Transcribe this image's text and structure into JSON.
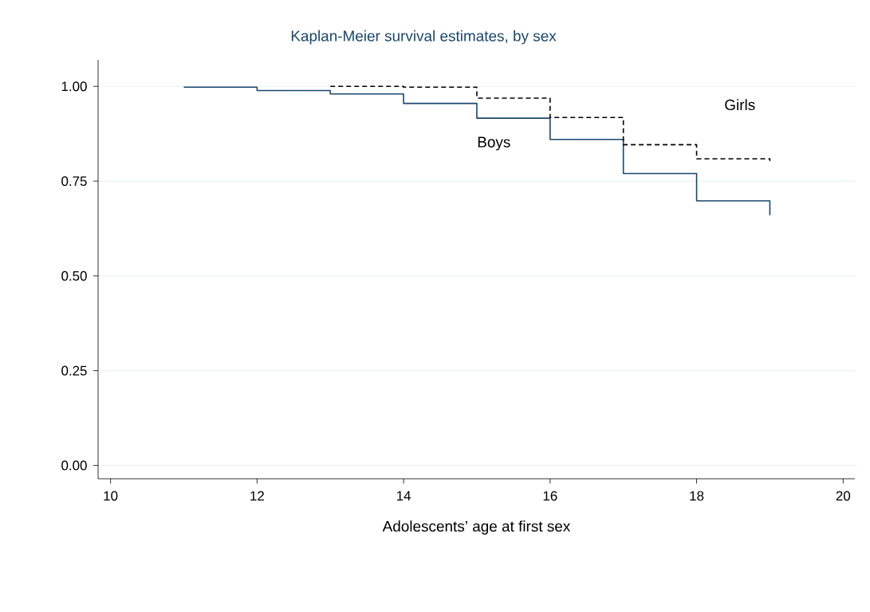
{
  "chart_data": {
    "type": "step",
    "title": "Kaplan-Meier survival estimates, by sex",
    "xlabel": "Adolescents’ age at first sex",
    "series": [
      {
        "color": "#1a476f",
        "line_style": "solid",
        "x": [
          11,
          12,
          13,
          14,
          15,
          16,
          17,
          18,
          19
        ],
        "values": [
          0.998,
          0.989,
          0.98,
          0.955,
          0.916,
          0.86,
          0.77,
          0.698,
          0.66
        ]
      },
      {
        "color": "#000000",
        "line_style": "dashed",
        "x": [
          13,
          14,
          15,
          16,
          17,
          18,
          19
        ],
        "values": [
          1.0,
          0.998,
          0.969,
          0.918,
          0.846,
          0.809,
          0.803
        ]
      }
    ],
    "annotations": [
      "Boys",
      "Girls"
    ],
    "xlim": [
      9.83,
      20.16
    ],
    "ylim": [
      -0.035,
      1.07
    ],
    "xticks": [
      10,
      12,
      14,
      16,
      18,
      20
    ],
    "yticks": [
      {
        "value": 0,
        "label": "0.00"
      },
      {
        "value": 0.25,
        "label": "0.25"
      },
      {
        "value": 0.5,
        "label": "0.50"
      },
      {
        "value": 0.75,
        "label": "0.75"
      },
      {
        "value": 1,
        "label": "1.00"
      }
    ],
    "grid": "y"
  }
}
